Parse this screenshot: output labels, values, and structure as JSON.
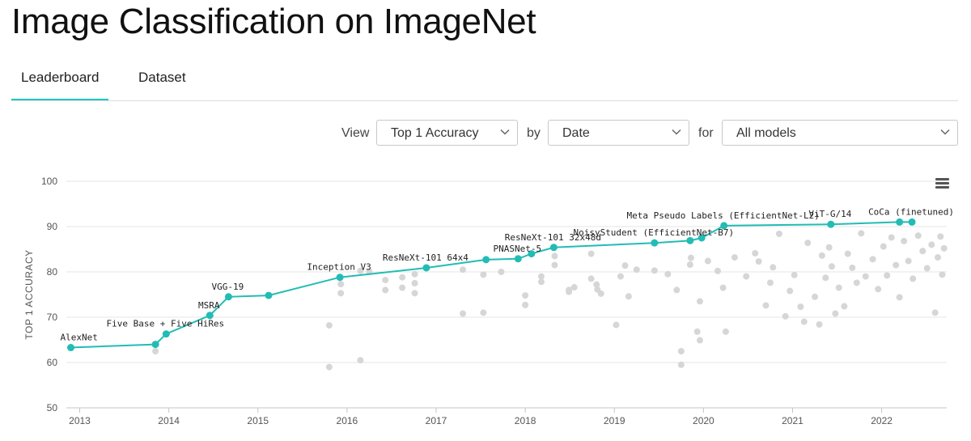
{
  "page": {
    "title": "Image Classification on ImageNet",
    "tabs": [
      "Leaderboard",
      "Dataset"
    ],
    "active_tab": "Leaderboard"
  },
  "filters": {
    "view_label": "View",
    "view_value": "Top 1 Accuracy",
    "by_label": "by",
    "by_value": "Date",
    "for_label": "for",
    "for_value": "All models"
  },
  "colors": {
    "accent": "#21c7bd",
    "sota": "#22bcb4",
    "other_models": "#d6d6d6"
  },
  "chart_data": {
    "type": "scatter",
    "ylabel": "TOP 1 ACCURACY",
    "xlabel": "",
    "xlim": [
      2012.85,
      2022.73
    ],
    "ylim": [
      50,
      100
    ],
    "x_ticks": [
      "2013",
      "2014",
      "2015",
      "2016",
      "2017",
      "2018",
      "2019",
      "2020",
      "2021",
      "2022"
    ],
    "y_ticks": [
      50,
      60,
      70,
      80,
      90,
      100
    ],
    "grid": "horizontal",
    "series": [
      {
        "kind": "sota-line",
        "points": [
          {
            "x": 2012.9,
            "y": 63.3,
            "label": "AlexNet"
          },
          {
            "x": 2013.85,
            "y": 64.0
          },
          {
            "x": 2013.97,
            "y": 66.3,
            "label": "Five Base + Five HiRes"
          },
          {
            "x": 2014.46,
            "y": 70.4,
            "label": "MSRA"
          },
          {
            "x": 2014.67,
            "y": 74.5,
            "label": "VGG-19"
          },
          {
            "x": 2015.12,
            "y": 74.8
          },
          {
            "x": 2015.92,
            "y": 78.8,
            "label": "Inception V3"
          },
          {
            "x": 2016.89,
            "y": 80.9,
            "label": "ResNeXt-101 64x4"
          },
          {
            "x": 2017.56,
            "y": 82.7
          },
          {
            "x": 2017.92,
            "y": 82.9,
            "label": "PNASNet-5"
          },
          {
            "x": 2018.07,
            "y": 84.0
          },
          {
            "x": 2018.32,
            "y": 85.4,
            "label": "ResNeXt-101 32x48d"
          },
          {
            "x": 2019.45,
            "y": 86.4,
            "label": "NoisyStudent (EfficientNet-B7)"
          },
          {
            "x": 2019.85,
            "y": 86.9
          },
          {
            "x": 2019.98,
            "y": 87.5
          },
          {
            "x": 2020.23,
            "y": 90.2,
            "label": "Meta Pseudo Labels (EfficientNet-L2)"
          },
          {
            "x": 2021.43,
            "y": 90.5,
            "label": "ViT-G/14"
          },
          {
            "x": 2022.2,
            "y": 91.0
          },
          {
            "x": 2022.34,
            "y": 91.0,
            "label": "CoCa (finetuned)"
          }
        ]
      },
      {
        "kind": "other-models",
        "points": [
          [
            2013.85,
            62.5
          ],
          [
            2015.8,
            68.2
          ],
          [
            2015.8,
            59.0
          ],
          [
            2015.93,
            77.3
          ],
          [
            2015.93,
            75.3
          ],
          [
            2016.15,
            80.2
          ],
          [
            2016.15,
            60.5
          ],
          [
            2016.25,
            80.0
          ],
          [
            2016.43,
            78.2
          ],
          [
            2016.43,
            76.0
          ],
          [
            2016.62,
            78.8
          ],
          [
            2016.62,
            76.5
          ],
          [
            2016.76,
            77.5
          ],
          [
            2016.76,
            75.3
          ],
          [
            2016.76,
            79.5
          ],
          [
            2017.3,
            80.5
          ],
          [
            2017.3,
            70.8
          ],
          [
            2017.53,
            79.4
          ],
          [
            2017.53,
            71.0
          ],
          [
            2017.73,
            80.0
          ],
          [
            2018.0,
            74.8
          ],
          [
            2018.0,
            72.7
          ],
          [
            2018.18,
            79.0
          ],
          [
            2018.18,
            77.8
          ],
          [
            2018.33,
            83.5
          ],
          [
            2018.33,
            81.5
          ],
          [
            2018.49,
            76.0
          ],
          [
            2018.49,
            75.6
          ],
          [
            2018.55,
            76.6
          ],
          [
            2018.74,
            78.5
          ],
          [
            2018.74,
            84.0
          ],
          [
            2018.8,
            77.2
          ],
          [
            2018.81,
            76.1
          ],
          [
            2018.85,
            75.2
          ],
          [
            2019.02,
            68.3
          ],
          [
            2019.07,
            79.0
          ],
          [
            2019.12,
            81.4
          ],
          [
            2019.16,
            74.6
          ],
          [
            2019.25,
            80.5
          ],
          [
            2019.45,
            80.3
          ],
          [
            2019.6,
            79.5
          ],
          [
            2019.7,
            76.0
          ],
          [
            2019.75,
            62.5
          ],
          [
            2019.75,
            59.5
          ],
          [
            2019.85,
            81.6
          ],
          [
            2019.86,
            83.1
          ],
          [
            2019.93,
            66.8
          ],
          [
            2019.96,
            73.5
          ],
          [
            2019.96,
            64.9
          ],
          [
            2020.05,
            82.4
          ],
          [
            2020.16,
            80.2
          ],
          [
            2020.22,
            76.5
          ],
          [
            2020.25,
            66.8
          ],
          [
            2020.35,
            83.2
          ],
          [
            2020.48,
            79.0
          ],
          [
            2020.58,
            84.1
          ],
          [
            2020.62,
            82.3
          ],
          [
            2020.7,
            72.6
          ],
          [
            2020.75,
            77.6
          ],
          [
            2020.78,
            81.0
          ],
          [
            2020.85,
            88.4
          ],
          [
            2020.92,
            70.2
          ],
          [
            2020.97,
            75.8
          ],
          [
            2021.02,
            79.3
          ],
          [
            2021.09,
            72.3
          ],
          [
            2021.13,
            69.0
          ],
          [
            2021.17,
            86.4
          ],
          [
            2021.25,
            74.5
          ],
          [
            2021.3,
            68.4
          ],
          [
            2021.33,
            83.6
          ],
          [
            2021.37,
            78.7
          ],
          [
            2021.41,
            85.4
          ],
          [
            2021.44,
            81.2
          ],
          [
            2021.48,
            70.8
          ],
          [
            2021.52,
            76.5
          ],
          [
            2021.58,
            72.4
          ],
          [
            2021.62,
            84.0
          ],
          [
            2021.67,
            80.9
          ],
          [
            2021.72,
            77.6
          ],
          [
            2021.77,
            88.5
          ],
          [
            2021.82,
            79.0
          ],
          [
            2021.9,
            82.8
          ],
          [
            2021.96,
            76.2
          ],
          [
            2022.02,
            85.6
          ],
          [
            2022.06,
            79.2
          ],
          [
            2022.11,
            87.6
          ],
          [
            2022.16,
            81.5
          ],
          [
            2022.2,
            74.4
          ],
          [
            2022.25,
            86.8
          ],
          [
            2022.3,
            82.4
          ],
          [
            2022.35,
            78.5
          ],
          [
            2022.41,
            88.0
          ],
          [
            2022.46,
            84.6
          ],
          [
            2022.51,
            80.8
          ],
          [
            2022.56,
            86.0
          ],
          [
            2022.6,
            71.0
          ],
          [
            2022.63,
            83.2
          ],
          [
            2022.66,
            87.8
          ],
          [
            2022.68,
            79.4
          ],
          [
            2022.7,
            85.2
          ]
        ]
      }
    ]
  }
}
